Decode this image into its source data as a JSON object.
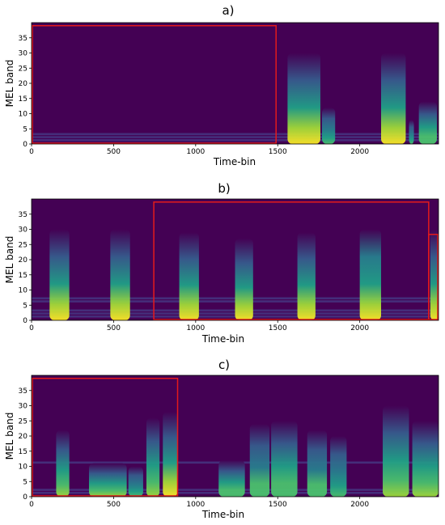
{
  "colors": {
    "background": "#440154",
    "highlight_box": "#e31a1c",
    "colormap": [
      "#440154",
      "#46327e",
      "#365c8d",
      "#277f8e",
      "#1fa187",
      "#4ac16d",
      "#a0da39",
      "#fde725"
    ]
  },
  "chart_data": [
    {
      "type": "heatmap",
      "title": "a)",
      "xlabel": "Time-bin",
      "ylabel": "MEL band",
      "xlim": [
        0,
        2480
      ],
      "ylim": [
        0,
        40
      ],
      "xticks": [
        0,
        500,
        1000,
        1500,
        2000
      ],
      "yticks": [
        0,
        5,
        10,
        15,
        20,
        25,
        30,
        35
      ],
      "grid": false,
      "colormap": "viridis",
      "highlight": {
        "x_start": 0,
        "x_end": 1490,
        "y_start": 0,
        "y_end": 39
      },
      "baseline_bands": [
        1,
        2,
        3
      ],
      "events": [
        {
          "x_start": 1560,
          "x_end": 1760,
          "top_band": 30,
          "intensity": 0.85
        },
        {
          "x_start": 1770,
          "x_end": 1850,
          "top_band": 12,
          "intensity": 0.3
        },
        {
          "x_start": 2130,
          "x_end": 2280,
          "top_band": 30,
          "intensity": 0.85
        },
        {
          "x_start": 2300,
          "x_end": 2330,
          "top_band": 8,
          "intensity": 0.3
        },
        {
          "x_start": 2360,
          "x_end": 2470,
          "top_band": 14,
          "intensity": 0.5
        }
      ]
    },
    {
      "type": "heatmap",
      "title": "b)",
      "xlabel": "Time-bin",
      "ylabel": "MEL band",
      "xlim": [
        0,
        2480
      ],
      "ylim": [
        0,
        40
      ],
      "xticks": [
        0,
        500,
        1000,
        1500,
        2000
      ],
      "yticks": [
        0,
        5,
        10,
        15,
        20,
        25,
        30,
        35
      ],
      "grid": false,
      "colormap": "viridis",
      "highlight": {
        "x_start": 740,
        "x_end": 2420,
        "y_start": 0,
        "y_end": 39
      },
      "highlight_right_stub": {
        "x_start": 2420,
        "x_end": 2480
      },
      "baseline_bands": [
        1,
        2,
        3,
        6,
        7
      ],
      "events": [
        {
          "x_start": 110,
          "x_end": 230,
          "top_band": 30,
          "intensity": 0.9
        },
        {
          "x_start": 480,
          "x_end": 600,
          "top_band": 30,
          "intensity": 0.9
        },
        {
          "x_start": 900,
          "x_end": 1020,
          "top_band": 29,
          "intensity": 0.9
        },
        {
          "x_start": 1240,
          "x_end": 1350,
          "top_band": 27,
          "intensity": 0.85
        },
        {
          "x_start": 1620,
          "x_end": 1730,
          "top_band": 29,
          "intensity": 0.85
        },
        {
          "x_start": 2000,
          "x_end": 2130,
          "top_band": 30,
          "intensity": 0.95
        },
        {
          "x_start": 2430,
          "x_end": 2480,
          "top_band": 30,
          "intensity": 0.85
        }
      ]
    },
    {
      "type": "heatmap",
      "title": "c)",
      "xlabel": "Time-bin",
      "ylabel": "MEL band",
      "xlim": [
        0,
        2480
      ],
      "ylim": [
        0,
        40
      ],
      "xticks": [
        0,
        500,
        1000,
        1500,
        2000
      ],
      "yticks": [
        0,
        5,
        10,
        15,
        20,
        25,
        30,
        35
      ],
      "grid": false,
      "colormap": "viridis",
      "highlight": {
        "x_start": 0,
        "x_end": 890,
        "y_start": 0,
        "y_end": 39
      },
      "baseline_bands": [
        1,
        2,
        11
      ],
      "events": [
        {
          "x_start": 150,
          "x_end": 230,
          "top_band": 22,
          "intensity": 0.6
        },
        {
          "x_start": 350,
          "x_end": 580,
          "top_band": 11,
          "intensity": 0.55
        },
        {
          "x_start": 590,
          "x_end": 680,
          "top_band": 10,
          "intensity": 0.35
        },
        {
          "x_start": 700,
          "x_end": 780,
          "top_band": 26,
          "intensity": 0.55
        },
        {
          "x_start": 800,
          "x_end": 890,
          "top_band": 28,
          "intensity": 0.9
        },
        {
          "x_start": 1140,
          "x_end": 1300,
          "top_band": 12,
          "intensity": 0.5
        },
        {
          "x_start": 1330,
          "x_end": 1450,
          "top_band": 24,
          "intensity": 0.45
        },
        {
          "x_start": 1460,
          "x_end": 1620,
          "top_band": 25,
          "intensity": 0.5
        },
        {
          "x_start": 1680,
          "x_end": 1800,
          "top_band": 22,
          "intensity": 0.45
        },
        {
          "x_start": 1820,
          "x_end": 1920,
          "top_band": 20,
          "intensity": 0.4
        },
        {
          "x_start": 2140,
          "x_end": 2300,
          "top_band": 30,
          "intensity": 0.7
        },
        {
          "x_start": 2320,
          "x_end": 2480,
          "top_band": 25,
          "intensity": 0.55
        }
      ]
    }
  ]
}
